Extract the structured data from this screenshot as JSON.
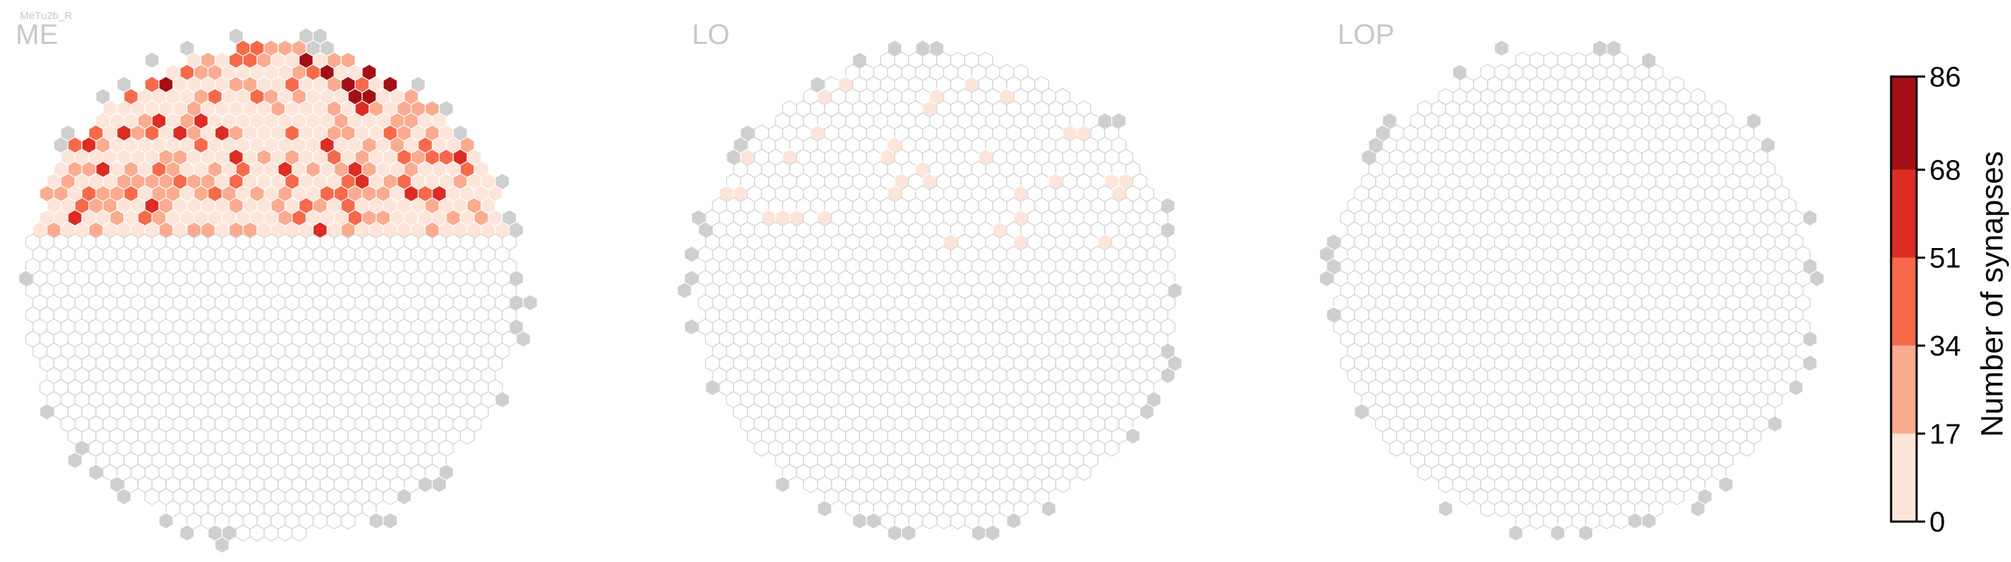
{
  "chart_data": {
    "type": "heatmap",
    "cell_type_label": "MeTu2b_R",
    "panels": [
      {
        "name": "ME",
        "filled_rows": "top",
        "max_count": 86
      },
      {
        "name": "LO",
        "filled_rows": "sparse",
        "max_count": 10
      },
      {
        "name": "LOP",
        "filled_rows": "single",
        "max_count": 5
      }
    ],
    "colorbar": {
      "label": "Number of synapses",
      "ticks": [
        0,
        17,
        34,
        51,
        68,
        86
      ],
      "bins": [
        {
          "from": 0,
          "to": 17,
          "color": "#fde5da"
        },
        {
          "from": 17,
          "to": 34,
          "color": "#fbab8f"
        },
        {
          "from": 34,
          "to": 51,
          "color": "#f7694b"
        },
        {
          "from": 51,
          "to": 68,
          "color": "#dc2c24"
        },
        {
          "from": 68,
          "to": 86,
          "color": "#a40f15"
        }
      ]
    },
    "colors": {
      "empty_hex_stroke": "#d2d2d2",
      "outside_column": "#cfcfcf",
      "label_gray": "#c8c8c8"
    }
  }
}
